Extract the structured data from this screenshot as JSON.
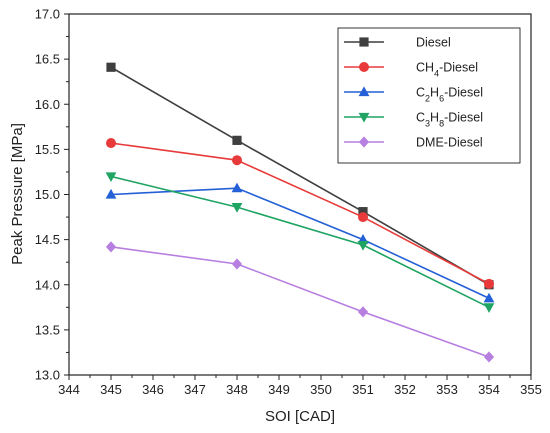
{
  "chart_data": {
    "type": "line",
    "xlabel": "SOI [CAD]",
    "ylabel": "Peak Pressure [MPa]",
    "xlim": [
      344,
      355
    ],
    "ylim": [
      13.0,
      17.0
    ],
    "xticks": [
      "344",
      "345",
      "346",
      "347",
      "348",
      "349",
      "350",
      "351",
      "352",
      "353",
      "354",
      "355"
    ],
    "yticks": [
      "13.0",
      "13.5",
      "14.0",
      "14.5",
      "15.0",
      "15.5",
      "16.0",
      "16.5",
      "17.0"
    ],
    "grid": false,
    "legend_position": "top-right",
    "x": [
      345,
      348,
      351,
      354
    ],
    "series": [
      {
        "name": "Diesel",
        "name_parts": [
          {
            "t": "Diesel",
            "sub": false
          }
        ],
        "color": "#3f3f3f",
        "marker": "square",
        "values": [
          16.41,
          15.6,
          14.81,
          14.0
        ]
      },
      {
        "name": "CH4-Diesel",
        "name_parts": [
          {
            "t": "CH",
            "sub": false
          },
          {
            "t": "4",
            "sub": true
          },
          {
            "t": "-Diesel",
            "sub": false
          }
        ],
        "color": "#e83a3a",
        "marker": "circle",
        "values": [
          15.57,
          15.38,
          14.75,
          14.01
        ]
      },
      {
        "name": "C2H6-Diesel",
        "name_parts": [
          {
            "t": "C",
            "sub": false
          },
          {
            "t": "2",
            "sub": true
          },
          {
            "t": "H",
            "sub": false
          },
          {
            "t": "6",
            "sub": true
          },
          {
            "t": "-Diesel",
            "sub": false
          }
        ],
        "color": "#2460d6",
        "marker": "triangle-up",
        "values": [
          15.0,
          15.07,
          14.5,
          13.85
        ]
      },
      {
        "name": "C3H8-Diesel",
        "name_parts": [
          {
            "t": "C",
            "sub": false
          },
          {
            "t": "3",
            "sub": true
          },
          {
            "t": "H",
            "sub": false
          },
          {
            "t": "8",
            "sub": true
          },
          {
            "t": "-Diesel",
            "sub": false
          }
        ],
        "color": "#1fa463",
        "marker": "triangle-down",
        "values": [
          15.2,
          14.86,
          14.44,
          13.75
        ]
      },
      {
        "name": "DME-Diesel",
        "name_parts": [
          {
            "t": "DME-Diesel",
            "sub": false
          }
        ],
        "color": "#b77fe0",
        "marker": "diamond",
        "values": [
          14.42,
          14.23,
          13.7,
          13.2
        ]
      }
    ]
  }
}
